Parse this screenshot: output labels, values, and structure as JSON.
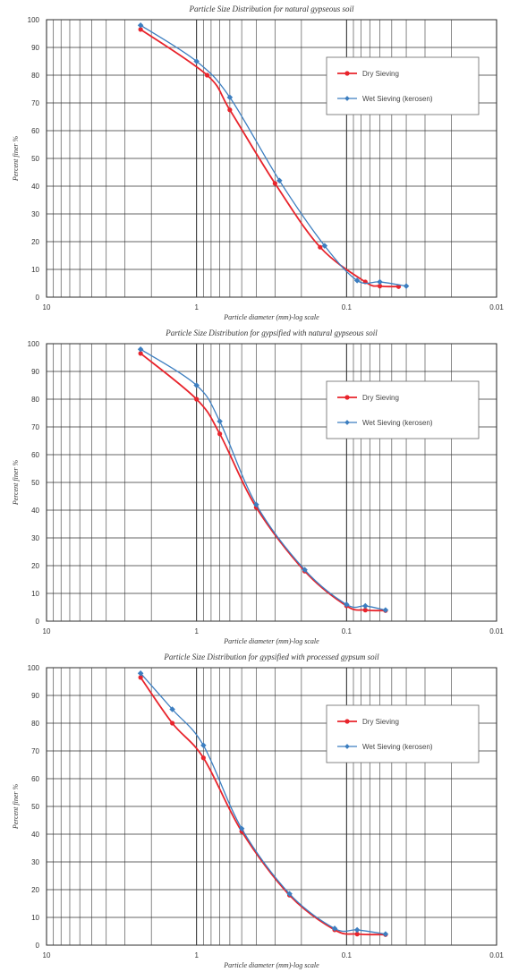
{
  "chart_data": [
    {
      "type": "line",
      "title": "Particle Size Distribution for natural gypseous soil",
      "xlabel": "Particle diameter (mm)-log  scale",
      "ylabel": "Percent finer %",
      "xscale": "log",
      "x_reversed": true,
      "xlim": [
        10,
        0.01
      ],
      "ylim": [
        0,
        100
      ],
      "x_ticks": [
        "10",
        "1",
        "0.1",
        "0.01"
      ],
      "y_ticks": [
        "0",
        "10",
        "20",
        "30",
        "40",
        "50",
        "60",
        "70",
        "80",
        "90",
        "100"
      ],
      "grid": true,
      "legend_position": "top-right",
      "series": [
        {
          "name": "Dry Sieving",
          "color": "#e8242c",
          "x": [
            2.36,
            0.85,
            0.6,
            0.3,
            0.15,
            0.075,
            0.06,
            0.045
          ],
          "y": [
            96.5,
            80,
            67.5,
            41,
            18,
            5.5,
            4,
            3.8
          ]
        },
        {
          "name": "Wet Sieving (kerosen)",
          "color": "#3c7ec0",
          "x": [
            2.36,
            1.0,
            0.6,
            0.28,
            0.14,
            0.085,
            0.06,
            0.04
          ],
          "y": [
            98,
            85,
            72,
            42,
            18.5,
            6,
            5.5,
            4
          ]
        }
      ]
    },
    {
      "type": "line",
      "title": "Particle Size Distribution for gypsified with natural gypseous soil",
      "xlabel": "Particle diameter (mm)-log  scale",
      "ylabel": "Percent finer %",
      "xscale": "log",
      "x_reversed": true,
      "xlim": [
        10,
        0.01
      ],
      "ylim": [
        0,
        100
      ],
      "x_ticks": [
        "10",
        "1",
        "0.1",
        "0.01"
      ],
      "y_ticks": [
        "0",
        "10",
        "20",
        "30",
        "40",
        "50",
        "60",
        "70",
        "80",
        "90",
        "100"
      ],
      "grid": true,
      "legend_position": "top-right",
      "series": [
        {
          "name": "Dry Sieving",
          "color": "#e8242c",
          "x": [
            2.36,
            1.0,
            0.7,
            0.4,
            0.19,
            0.1,
            0.075,
            0.055
          ],
          "y": [
            96.5,
            80,
            67.5,
            41,
            18,
            5.5,
            4,
            3.8
          ]
        },
        {
          "name": "Wet Sieving (kerosen)",
          "color": "#3c7ec0",
          "x": [
            2.36,
            1.0,
            0.7,
            0.4,
            0.19,
            0.1,
            0.075,
            0.055
          ],
          "y": [
            98,
            85,
            72,
            42,
            18.5,
            6,
            5.5,
            4
          ]
        }
      ]
    },
    {
      "type": "line",
      "title": "Particle Size Distribution for gypsified with processed gypsum soil",
      "xlabel": "Particle diameter (mm)-log  scale",
      "ylabel": "Percent finer %",
      "xscale": "log",
      "x_reversed": true,
      "xlim": [
        10,
        0.01
      ],
      "ylim": [
        0,
        100
      ],
      "x_ticks": [
        "10",
        "1",
        "0.1",
        "0.01"
      ],
      "y_ticks": [
        "0",
        "10",
        "20",
        "30",
        "40",
        "50",
        "60",
        "70",
        "80",
        "90",
        "100"
      ],
      "grid": true,
      "legend_position": "top-right",
      "series": [
        {
          "name": "Dry Sieving",
          "color": "#e8242c",
          "x": [
            2.36,
            1.45,
            0.9,
            0.5,
            0.24,
            0.12,
            0.085,
            0.055
          ],
          "y": [
            96.5,
            80,
            67.5,
            41,
            18,
            5.5,
            4,
            3.8
          ]
        },
        {
          "name": "Wet Sieving (kerosen)",
          "color": "#3c7ec0",
          "x": [
            2.36,
            1.45,
            0.9,
            0.5,
            0.24,
            0.12,
            0.085,
            0.055
          ],
          "y": [
            98,
            85,
            72,
            42,
            18.5,
            6,
            5.5,
            4
          ]
        }
      ]
    }
  ]
}
